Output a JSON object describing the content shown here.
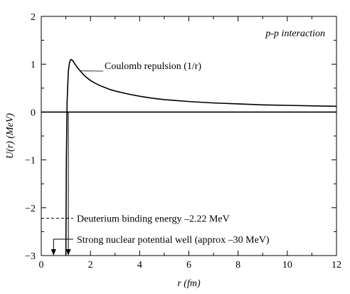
{
  "chart_data": {
    "type": "line",
    "title": "",
    "xlabel": "r (fm)",
    "ylabel": "U(r) (MeV)",
    "xlim": [
      0,
      12
    ],
    "ylim": [
      -3,
      2
    ],
    "x_ticks": [
      0,
      2,
      4,
      6,
      8,
      10,
      12
    ],
    "x_tick_labels": [
      "0",
      "2",
      "4",
      "6",
      "8",
      "10",
      "12"
    ],
    "y_ticks": [
      -3,
      -2,
      -1,
      0,
      1,
      2
    ],
    "y_tick_labels": [
      "−3",
      "−2",
      "−1",
      "0",
      "1",
      "2"
    ],
    "grid": false,
    "series": [
      {
        "x": [
          1.0,
          1.02,
          1.05,
          1.1,
          1.15,
          1.2,
          1.25,
          1.3,
          1.4,
          1.5,
          1.6,
          1.7,
          1.8,
          2.0,
          2.2,
          2.4,
          2.6,
          2.8,
          3.0,
          3.5,
          4.0,
          4.5,
          5.0,
          6.0,
          7.0,
          8.0,
          9.0,
          10.0,
          11.0,
          12.0
        ],
        "y": [
          -3.0,
          -1.0,
          0.2,
          0.85,
          1.04,
          1.1,
          1.09,
          1.06,
          0.98,
          0.91,
          0.85,
          0.79,
          0.74,
          0.66,
          0.6,
          0.55,
          0.51,
          0.47,
          0.44,
          0.38,
          0.33,
          0.29,
          0.26,
          0.22,
          0.19,
          0.17,
          0.15,
          0.14,
          0.13,
          0.12
        ]
      }
    ],
    "zero_line": 0,
    "binding_energy_level": -2.22,
    "well_marker_x": 1.1,
    "arrow_left_from_x": 1.1,
    "arrow_left_to_x": 0.5,
    "annotations": {
      "interaction": "p-p interaction",
      "coulomb": "Coulomb repulsion (1/r)",
      "binding": "Deuterium binding energy –2.22 MeV",
      "well": "Strong nuclear potential well (approx –30 MeV)"
    }
  }
}
